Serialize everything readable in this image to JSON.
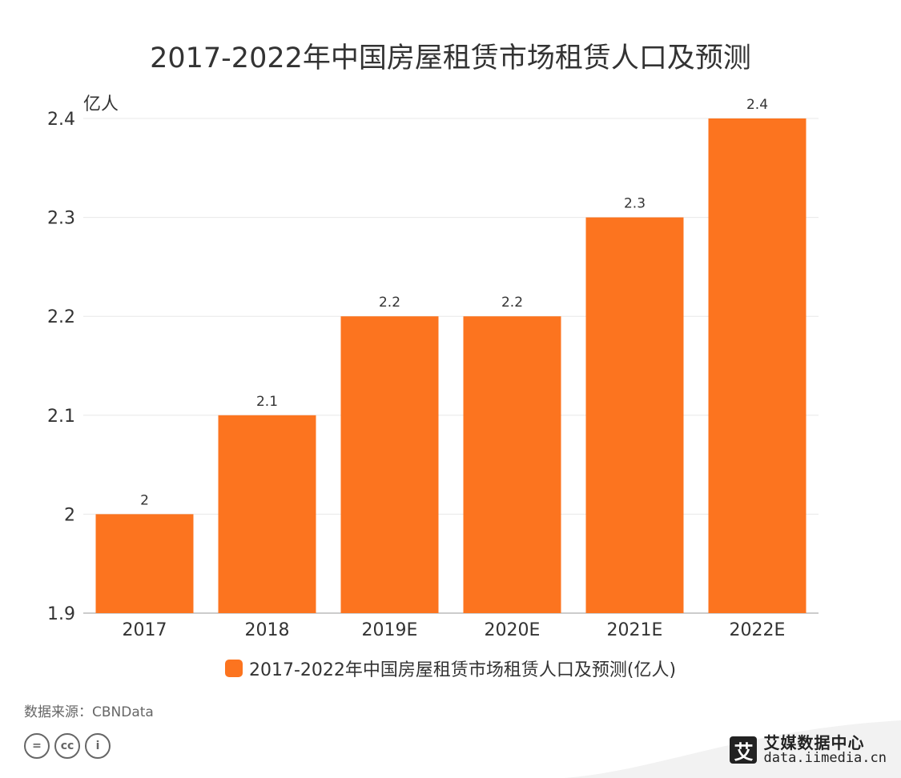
{
  "chart_data": {
    "type": "bar",
    "title": "2017-2022年中国房屋租赁市场租赁人口及预测",
    "ylabel": "亿人",
    "xlabel": "",
    "categories": [
      "2017",
      "2018",
      "2019E",
      "2020E",
      "2021E",
      "2022E"
    ],
    "series": [
      {
        "name": "2017-2022年中国房屋租赁市场租赁人口及预测(亿人)",
        "values": [
          2,
          2.1,
          2.2,
          2.2,
          2.3,
          2.4
        ],
        "color": "#fc741f"
      }
    ],
    "ylim": [
      1.9,
      2.4
    ],
    "yticks": [
      "1.9",
      "2",
      "2.1",
      "2.2",
      "2.3",
      "2.4"
    ],
    "data_labels": [
      "2",
      "2.1",
      "2.2",
      "2.2",
      "2.3",
      "2.4"
    ],
    "grid": true,
    "legend_position": "bottom"
  },
  "footer": {
    "source": "数据来源：CBNData",
    "brand_logo": "艾",
    "brand_name": "艾媒数据中心",
    "brand_url": "data.iimedia.cn",
    "license_icons": [
      "=",
      "cc",
      "i"
    ]
  }
}
